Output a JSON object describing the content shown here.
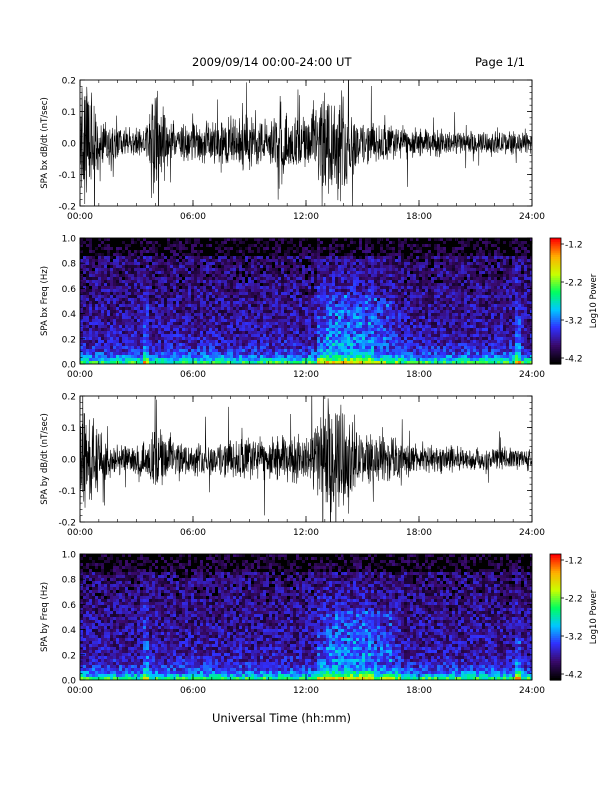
{
  "header": {
    "date_range": "2009/09/14  00:00-24:00 UT",
    "page": "Page 1/1"
  },
  "footer": {
    "xlabel": "Universal Time (hh:mm)"
  },
  "x_tick_labels": [
    "00:00",
    "06:00",
    "12:00",
    "18:00",
    "24:00"
  ],
  "colorbar": {
    "label": "Log10 Power",
    "tick_labels": [
      "-1.2",
      "-2.2",
      "-3.2",
      "-4.2"
    ],
    "range": [
      -4.2,
      -1.2
    ],
    "colormap": [
      "#000000",
      "#3a0a6e",
      "#3030ff",
      "#00c8ff",
      "#00ff60",
      "#c8ff00",
      "#ffb000",
      "#ff0000"
    ]
  },
  "chart_data": [
    {
      "type": "line",
      "title": "",
      "ylabel": "SPA bx dB/dt (nT/sec)",
      "xlabel": "",
      "xlim": [
        0,
        24
      ],
      "ylim": [
        -0.2,
        0.2
      ],
      "y_ticks": [
        "0.2",
        "0.1",
        "0.0",
        "-0.1",
        "-0.2"
      ],
      "x_ticks": [
        0,
        6,
        12,
        18,
        24
      ],
      "series_color": "#000000",
      "envelope": {
        "x_hours": [
          0,
          0.5,
          1,
          1.5,
          2,
          3,
          3.5,
          4,
          5,
          6,
          7,
          8,
          9,
          10,
          11,
          12,
          12.5,
          13,
          13.5,
          14,
          14.5,
          15,
          16,
          17,
          18,
          19,
          20,
          21,
          22,
          23,
          24
        ],
        "amplitude": [
          0.2,
          0.2,
          0.09,
          0.07,
          0.06,
          0.05,
          0.05,
          0.2,
          0.06,
          0.07,
          0.07,
          0.09,
          0.1,
          0.08,
          0.1,
          0.09,
          0.12,
          0.2,
          0.2,
          0.2,
          0.12,
          0.08,
          0.07,
          0.06,
          0.05,
          0.05,
          0.04,
          0.04,
          0.04,
          0.04,
          0.04
        ]
      }
    },
    {
      "type": "heatmap",
      "title": "",
      "ylabel": "SPA bx Freq (Hz)",
      "xlabel": "",
      "xlim": [
        0,
        24
      ],
      "ylim": [
        0,
        1.0
      ],
      "y_ticks": [
        "1.0",
        "0.8",
        "0.6",
        "0.4",
        "0.2",
        "0.0"
      ],
      "x_ticks": [
        0,
        6,
        12,
        18,
        24
      ],
      "z_label": "Log10 Power",
      "z_range": [
        -4.2,
        -1.2
      ]
    },
    {
      "type": "line",
      "title": "",
      "ylabel": "SPA by dB/dt (nT/sec)",
      "xlabel": "",
      "xlim": [
        0,
        24
      ],
      "ylim": [
        -0.2,
        0.2
      ],
      "y_ticks": [
        "0.2",
        "0.1",
        "0.0",
        "-0.1",
        "-0.2"
      ],
      "x_ticks": [
        0,
        6,
        12,
        18,
        24
      ],
      "series_color": "#000000",
      "envelope": {
        "x_hours": [
          0,
          0.5,
          1,
          1.5,
          2,
          3,
          3.5,
          4,
          5,
          6,
          7,
          8,
          9,
          10,
          11,
          12,
          12.5,
          13,
          13.5,
          14,
          14.5,
          15,
          16,
          17,
          18,
          19,
          20,
          21,
          22,
          23,
          24
        ],
        "amplitude": [
          0.2,
          0.2,
          0.1,
          0.07,
          0.06,
          0.05,
          0.06,
          0.12,
          0.06,
          0.06,
          0.06,
          0.07,
          0.08,
          0.07,
          0.09,
          0.08,
          0.12,
          0.2,
          0.2,
          0.2,
          0.12,
          0.08,
          0.09,
          0.07,
          0.05,
          0.05,
          0.05,
          0.04,
          0.04,
          0.04,
          0.04
        ]
      }
    },
    {
      "type": "heatmap",
      "title": "",
      "ylabel": "SPA by Freq (Hz)",
      "xlabel": "",
      "xlim": [
        0,
        24
      ],
      "ylim": [
        0,
        1.0
      ],
      "y_ticks": [
        "1.0",
        "0.8",
        "0.6",
        "0.4",
        "0.2",
        "0.0"
      ],
      "x_ticks": [
        0,
        6,
        12,
        18,
        24
      ],
      "z_label": "Log10 Power",
      "z_range": [
        -4.2,
        -1.2
      ]
    }
  ]
}
